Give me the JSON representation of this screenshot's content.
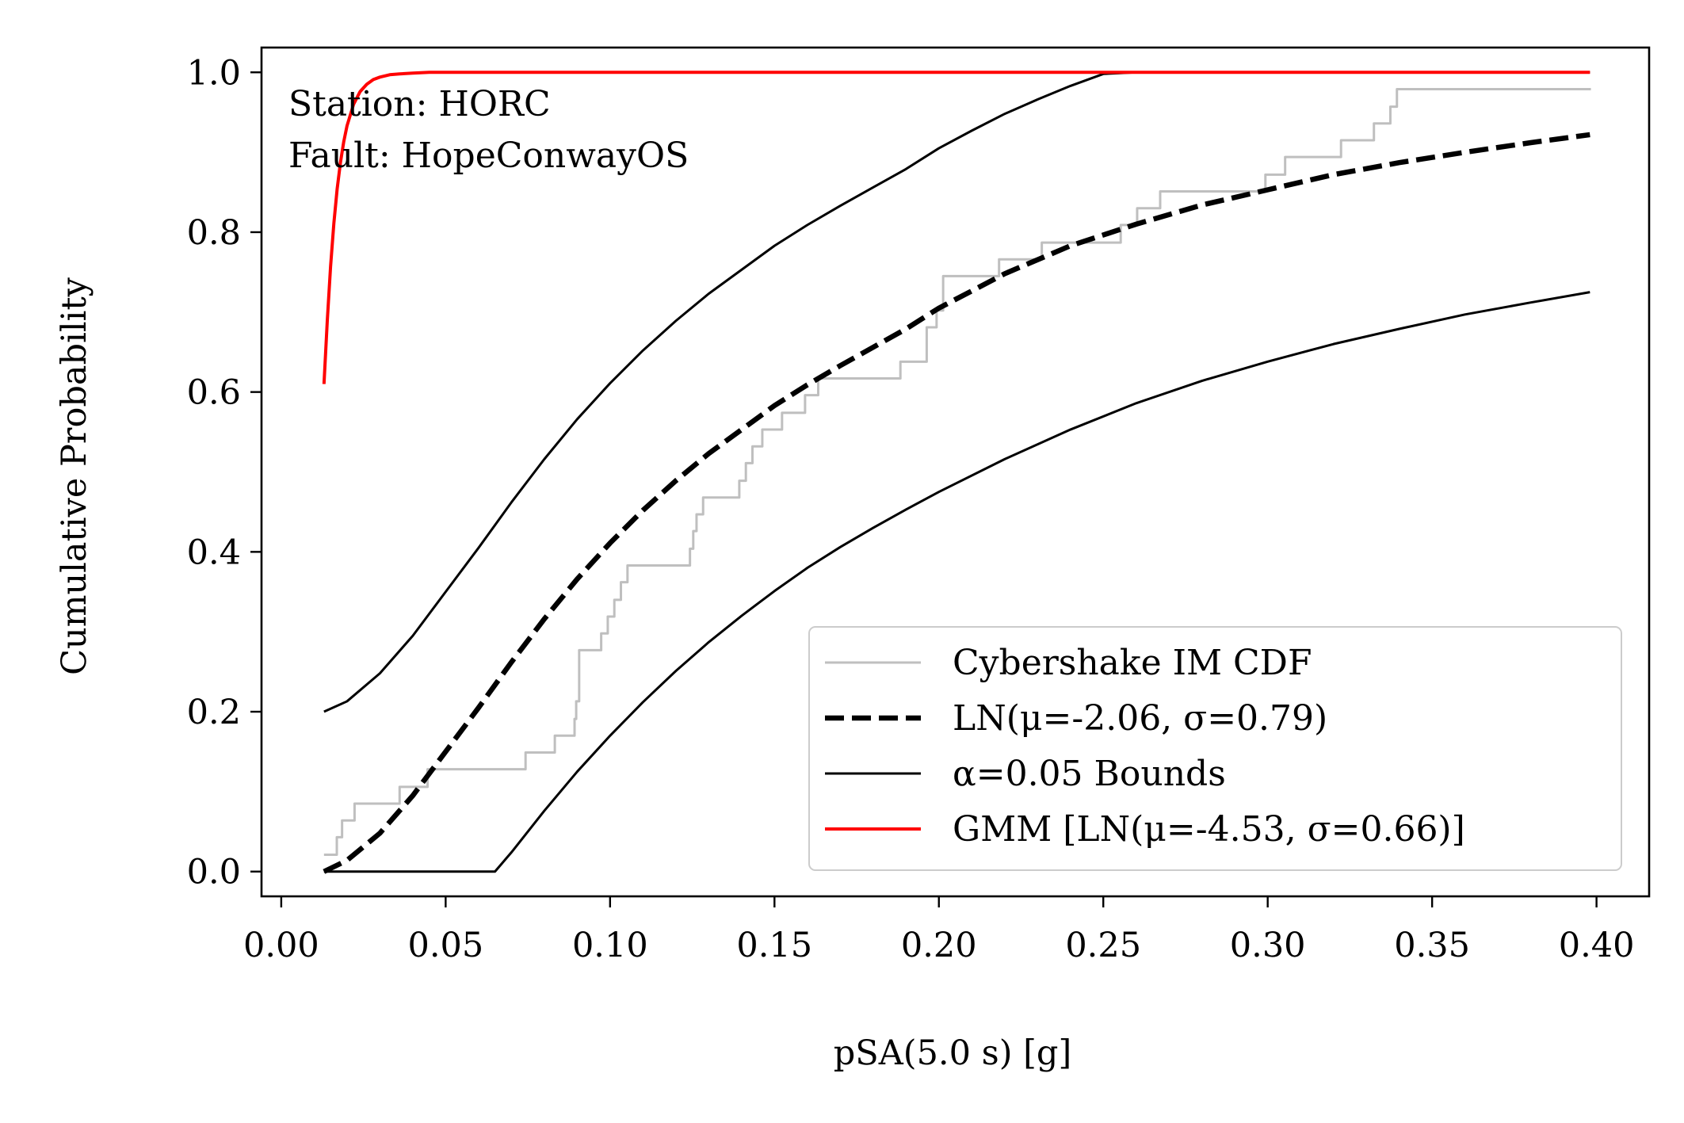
{
  "chart_data": {
    "type": "line",
    "xlabel": "pSA(5.0 s) [g]",
    "ylabel": "Cumulative Probability",
    "xlim": [
      -0.006,
      0.416
    ],
    "ylim": [
      -0.031,
      1.031
    ],
    "xticks": [
      0.0,
      0.05,
      0.1,
      0.15,
      0.2,
      0.25,
      0.3,
      0.35,
      0.4
    ],
    "xtick_labels": [
      "0.00",
      "0.05",
      "0.10",
      "0.15",
      "0.20",
      "0.25",
      "0.30",
      "0.35",
      "0.40"
    ],
    "yticks": [
      0.0,
      0.2,
      0.4,
      0.6,
      0.8,
      1.0
    ],
    "ytick_labels": [
      "0.0",
      "0.2",
      "0.4",
      "0.6",
      "0.8",
      "1.0"
    ],
    "grid": false,
    "legend_position": "lower-right",
    "annotation": [
      "Station: HORC",
      "Fault: HopeConwayOS"
    ],
    "series": [
      {
        "name": "Cybershake IM CDF",
        "style": "step",
        "color": "#bfbfbf",
        "x": [
          0.013,
          0.0169,
          0.0185,
          0.0205,
          0.0223,
          0.036,
          0.0445,
          0.0743,
          0.0832,
          0.0892,
          0.0897,
          0.0906,
          0.0973,
          0.0993,
          0.1013,
          0.1033,
          0.1053,
          0.1093,
          0.1243,
          0.1253,
          0.1263,
          0.1283,
          0.1303,
          0.1333,
          0.1393,
          0.1413,
          0.1433,
          0.1463,
          0.1473,
          0.1523,
          0.1593,
          0.1633,
          0.1723,
          0.1883,
          0.1963,
          0.1993,
          0.2013,
          0.2083,
          0.2183,
          0.2313,
          0.2553,
          0.2603,
          0.2673,
          0.2993,
          0.3053,
          0.3223,
          0.3323,
          0.3373,
          0.3393,
          0.3983
        ],
        "y": [
          0.021,
          0.043,
          0.064,
          0.064,
          0.085,
          0.106,
          0.128,
          0.149,
          0.17,
          0.191,
          0.213,
          0.277,
          0.298,
          0.319,
          0.34,
          0.362,
          0.383,
          0.383,
          0.404,
          0.426,
          0.447,
          0.468,
          0.468,
          0.468,
          0.489,
          0.511,
          0.532,
          0.553,
          0.553,
          0.574,
          0.596,
          0.617,
          0.617,
          0.638,
          0.681,
          0.702,
          0.745,
          0.745,
          0.766,
          0.787,
          0.809,
          0.83,
          0.851,
          0.872,
          0.894,
          0.915,
          0.936,
          0.957,
          0.979,
          0.979
        ]
      },
      {
        "name": "LN(μ=-2.06, σ=0.79)",
        "style": "dashed",
        "color": "#000000",
        "x": [
          0.013,
          0.02,
          0.03,
          0.04,
          0.05,
          0.06,
          0.07,
          0.08,
          0.09,
          0.1,
          0.11,
          0.12,
          0.13,
          0.14,
          0.15,
          0.16,
          0.17,
          0.18,
          0.19,
          0.2,
          0.22,
          0.24,
          0.26,
          0.28,
          0.3,
          0.32,
          0.34,
          0.36,
          0.38,
          0.398
        ],
        "y": [
          0.0,
          0.014,
          0.048,
          0.095,
          0.15,
          0.205,
          0.262,
          0.316,
          0.366,
          0.411,
          0.452,
          0.489,
          0.523,
          0.553,
          0.583,
          0.609,
          0.633,
          0.656,
          0.679,
          0.705,
          0.748,
          0.783,
          0.81,
          0.834,
          0.853,
          0.872,
          0.887,
          0.9,
          0.912,
          0.922
        ]
      },
      {
        "name": "α=0.05 Bounds",
        "style": "solid",
        "color": "#000000",
        "x": [
          0.013,
          0.02,
          0.03,
          0.04,
          0.05,
          0.06,
          0.07,
          0.08,
          0.09,
          0.1,
          0.11,
          0.12,
          0.13,
          0.14,
          0.15,
          0.16,
          0.17,
          0.18,
          0.19,
          0.2,
          0.21,
          0.22,
          0.23,
          0.24,
          0.25,
          0.26,
          0.398
        ],
        "y": [
          0.2,
          0.213,
          0.248,
          0.295,
          0.35,
          0.405,
          0.462,
          0.516,
          0.566,
          0.611,
          0.652,
          0.689,
          0.723,
          0.753,
          0.783,
          0.809,
          0.833,
          0.856,
          0.879,
          0.905,
          0.927,
          0.948,
          0.966,
          0.983,
          0.998,
          1.0,
          1.0
        ]
      },
      {
        "name": "",
        "style": "solid",
        "color": "#000000",
        "x": [
          0.013,
          0.065,
          0.07,
          0.08,
          0.09,
          0.1,
          0.11,
          0.12,
          0.13,
          0.14,
          0.15,
          0.16,
          0.17,
          0.18,
          0.19,
          0.2,
          0.22,
          0.24,
          0.26,
          0.28,
          0.3,
          0.32,
          0.34,
          0.36,
          0.38,
          0.398
        ],
        "y": [
          0.0,
          0.0,
          0.024,
          0.076,
          0.125,
          0.17,
          0.212,
          0.251,
          0.287,
          0.32,
          0.351,
          0.38,
          0.406,
          0.43,
          0.453,
          0.475,
          0.516,
          0.553,
          0.586,
          0.614,
          0.638,
          0.66,
          0.679,
          0.697,
          0.712,
          0.725
        ]
      },
      {
        "name": "GMM [LN(μ=-4.53, σ=0.66)]",
        "style": "solid",
        "color": "#ff0000",
        "x": [
          0.013,
          0.014,
          0.015,
          0.016,
          0.017,
          0.018,
          0.019,
          0.02,
          0.022,
          0.024,
          0.026,
          0.028,
          0.03,
          0.033,
          0.036,
          0.04,
          0.045,
          0.05,
          0.06,
          0.08,
          0.1,
          0.15,
          0.2,
          0.3,
          0.398
        ],
        "y": [
          0.61,
          0.689,
          0.757,
          0.811,
          0.854,
          0.887,
          0.913,
          0.933,
          0.96,
          0.976,
          0.985,
          0.991,
          0.994,
          0.997,
          0.998,
          0.999,
          1.0,
          1.0,
          1.0,
          1.0,
          1.0,
          1.0,
          1.0,
          1.0,
          1.0
        ]
      }
    ]
  }
}
